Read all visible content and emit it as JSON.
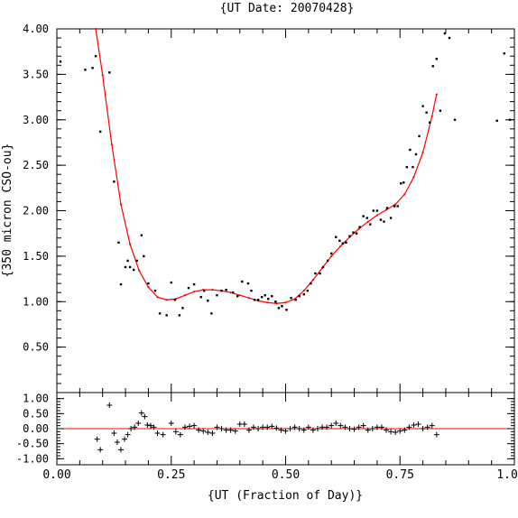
{
  "chart_data": [
    {
      "type": "scatter",
      "title": "{UT Date: 20070428}",
      "xlabel": "{UT (Fraction of Day)}",
      "ylabel": "{350 micron CSO-ou}",
      "xlim": [
        0.0,
        1.0
      ],
      "ylim": [
        0.0,
        4.0
      ],
      "yticks": [
        "0.50",
        "1.00",
        "1.50",
        "2.00",
        "2.50",
        "3.00",
        "3.50",
        "4.00"
      ],
      "xticks": [
        "0.00",
        "0.25",
        "0.50",
        "0.75",
        "1.00"
      ],
      "grid": false,
      "colors": {
        "points": "#000000",
        "fit": "#ff0000",
        "axes": "#000000"
      },
      "series": [
        {
          "marker": "dot",
          "x": [
            0.008,
            0.062,
            0.078,
            0.085,
            0.095,
            0.115,
            0.125,
            0.135,
            0.14,
            0.15,
            0.155,
            0.16,
            0.168,
            0.175,
            0.185,
            0.19,
            0.2,
            0.215,
            0.225,
            0.24,
            0.25,
            0.258,
            0.268,
            0.275,
            0.288,
            0.3,
            0.315,
            0.322,
            0.33,
            0.338,
            0.35,
            0.36,
            0.37,
            0.385,
            0.395,
            0.405,
            0.418,
            0.425,
            0.432,
            0.44,
            0.448,
            0.455,
            0.462,
            0.47,
            0.478,
            0.485,
            0.492,
            0.502,
            0.512,
            0.522,
            0.53,
            0.54,
            0.548,
            0.555,
            0.565,
            0.575,
            0.582,
            0.592,
            0.6,
            0.61,
            0.618,
            0.625,
            0.632,
            0.64,
            0.648,
            0.655,
            0.662,
            0.67,
            0.678,
            0.685,
            0.692,
            0.7,
            0.708,
            0.715,
            0.722,
            0.73,
            0.738,
            0.745,
            0.752,
            0.758,
            0.765,
            0.772,
            0.778,
            0.785,
            0.792,
            0.8,
            0.808,
            0.815,
            0.822,
            0.83,
            0.838,
            0.848,
            0.858,
            0.87,
            0.962,
            0.978,
            0.99
          ],
          "y": [
            3.64,
            3.55,
            3.57,
            3.7,
            2.87,
            3.52,
            2.32,
            1.65,
            1.19,
            1.38,
            1.45,
            1.38,
            1.35,
            1.45,
            1.73,
            1.5,
            1.2,
            1.12,
            0.87,
            0.85,
            1.21,
            1.02,
            0.85,
            0.93,
            1.15,
            1.19,
            1.05,
            1.12,
            1.01,
            0.87,
            1.07,
            1.12,
            1.13,
            1.1,
            1.06,
            1.22,
            1.2,
            1.12,
            1.02,
            1.02,
            1.05,
            1.07,
            1.03,
            1.06,
            1.0,
            0.93,
            0.95,
            0.91,
            1.04,
            1.02,
            1.06,
            1.08,
            1.12,
            1.2,
            1.31,
            1.31,
            1.38,
            1.45,
            1.53,
            1.71,
            1.67,
            1.64,
            1.65,
            1.72,
            1.76,
            1.75,
            1.82,
            1.94,
            1.92,
            1.85,
            2.0,
            2.0,
            1.9,
            1.88,
            2.03,
            1.92,
            2.05,
            2.05,
            2.3,
            2.31,
            2.48,
            2.67,
            2.48,
            2.62,
            2.82,
            3.15,
            3.08,
            2.97,
            3.59,
            3.67,
            3.1,
            3.95,
            3.9,
            3.0,
            2.99,
            3.73,
            3.0
          ]
        },
        {
          "marker": "fit-line",
          "x": [
            0.085,
            0.1,
            0.12,
            0.14,
            0.16,
            0.18,
            0.2,
            0.22,
            0.24,
            0.26,
            0.28,
            0.3,
            0.32,
            0.34,
            0.36,
            0.38,
            0.4,
            0.42,
            0.44,
            0.46,
            0.48,
            0.5,
            0.52,
            0.54,
            0.56,
            0.58,
            0.6,
            0.62,
            0.64,
            0.66,
            0.68,
            0.7,
            0.72,
            0.74,
            0.76,
            0.78,
            0.8,
            0.82,
            0.83
          ],
          "y": [
            4.0,
            3.49,
            2.73,
            2.07,
            1.63,
            1.34,
            1.16,
            1.05,
            1.02,
            1.03,
            1.07,
            1.11,
            1.13,
            1.13,
            1.12,
            1.1,
            1.07,
            1.04,
            1.01,
            0.99,
            0.98,
            0.99,
            1.03,
            1.12,
            1.24,
            1.37,
            1.5,
            1.61,
            1.71,
            1.8,
            1.88,
            1.95,
            2.01,
            2.07,
            2.18,
            2.37,
            2.64,
            3.04,
            3.28
          ]
        }
      ]
    },
    {
      "type": "scatter",
      "title": "",
      "xlabel": "{UT (Fraction of Day)}",
      "ylabel": "",
      "xlim": [
        0.0,
        1.0
      ],
      "ylim": [
        -1.2,
        1.2
      ],
      "yticks": [
        "-1.00",
        "-0.50",
        "0.00",
        "0.50",
        "1.00"
      ],
      "xticks": [
        "0.00",
        "0.25",
        "0.50",
        "0.75",
        "1.00"
      ],
      "grid": false,
      "colors": {
        "points": "#000000",
        "zero_line": "#ff0000"
      },
      "series": [
        {
          "marker": "plus",
          "x": [
            0.088,
            0.095,
            0.115,
            0.125,
            0.132,
            0.14,
            0.148,
            0.155,
            0.162,
            0.17,
            0.178,
            0.185,
            0.192,
            0.198,
            0.205,
            0.212,
            0.22,
            0.232,
            0.25,
            0.26,
            0.27,
            0.28,
            0.29,
            0.3,
            0.31,
            0.32,
            0.33,
            0.34,
            0.35,
            0.36,
            0.37,
            0.38,
            0.39,
            0.4,
            0.41,
            0.42,
            0.43,
            0.44,
            0.45,
            0.46,
            0.47,
            0.48,
            0.49,
            0.5,
            0.51,
            0.52,
            0.53,
            0.54,
            0.55,
            0.56,
            0.57,
            0.58,
            0.59,
            0.6,
            0.61,
            0.62,
            0.63,
            0.64,
            0.65,
            0.66,
            0.67,
            0.68,
            0.69,
            0.7,
            0.71,
            0.72,
            0.73,
            0.74,
            0.75,
            0.76,
            0.77,
            0.78,
            0.79,
            0.8,
            0.81,
            0.82,
            0.83
          ],
          "y": [
            -0.35,
            -0.7,
            0.78,
            -0.15,
            -0.45,
            -0.7,
            -0.35,
            -0.2,
            0.0,
            0.05,
            0.18,
            0.52,
            0.4,
            0.12,
            0.1,
            0.05,
            -0.15,
            -0.2,
            0.18,
            -0.1,
            -0.2,
            0.05,
            0.08,
            0.1,
            -0.05,
            -0.08,
            -0.12,
            -0.15,
            0.05,
            0.0,
            -0.05,
            -0.05,
            -0.08,
            0.15,
            0.15,
            -0.05,
            0.05,
            0.0,
            0.05,
            0.05,
            0.08,
            0.02,
            -0.05,
            -0.08,
            0.0,
            0.05,
            0.0,
            -0.05,
            0.05,
            -0.05,
            0.0,
            0.05,
            0.05,
            0.1,
            0.18,
            0.1,
            0.05,
            0.0,
            -0.02,
            0.05,
            0.1,
            -0.05,
            0.0,
            0.05,
            0.05,
            -0.05,
            -0.1,
            -0.12,
            -0.08,
            -0.05,
            0.05,
            0.12,
            0.15,
            0.0,
            0.05,
            0.1,
            -0.2
          ]
        }
      ]
    }
  ]
}
